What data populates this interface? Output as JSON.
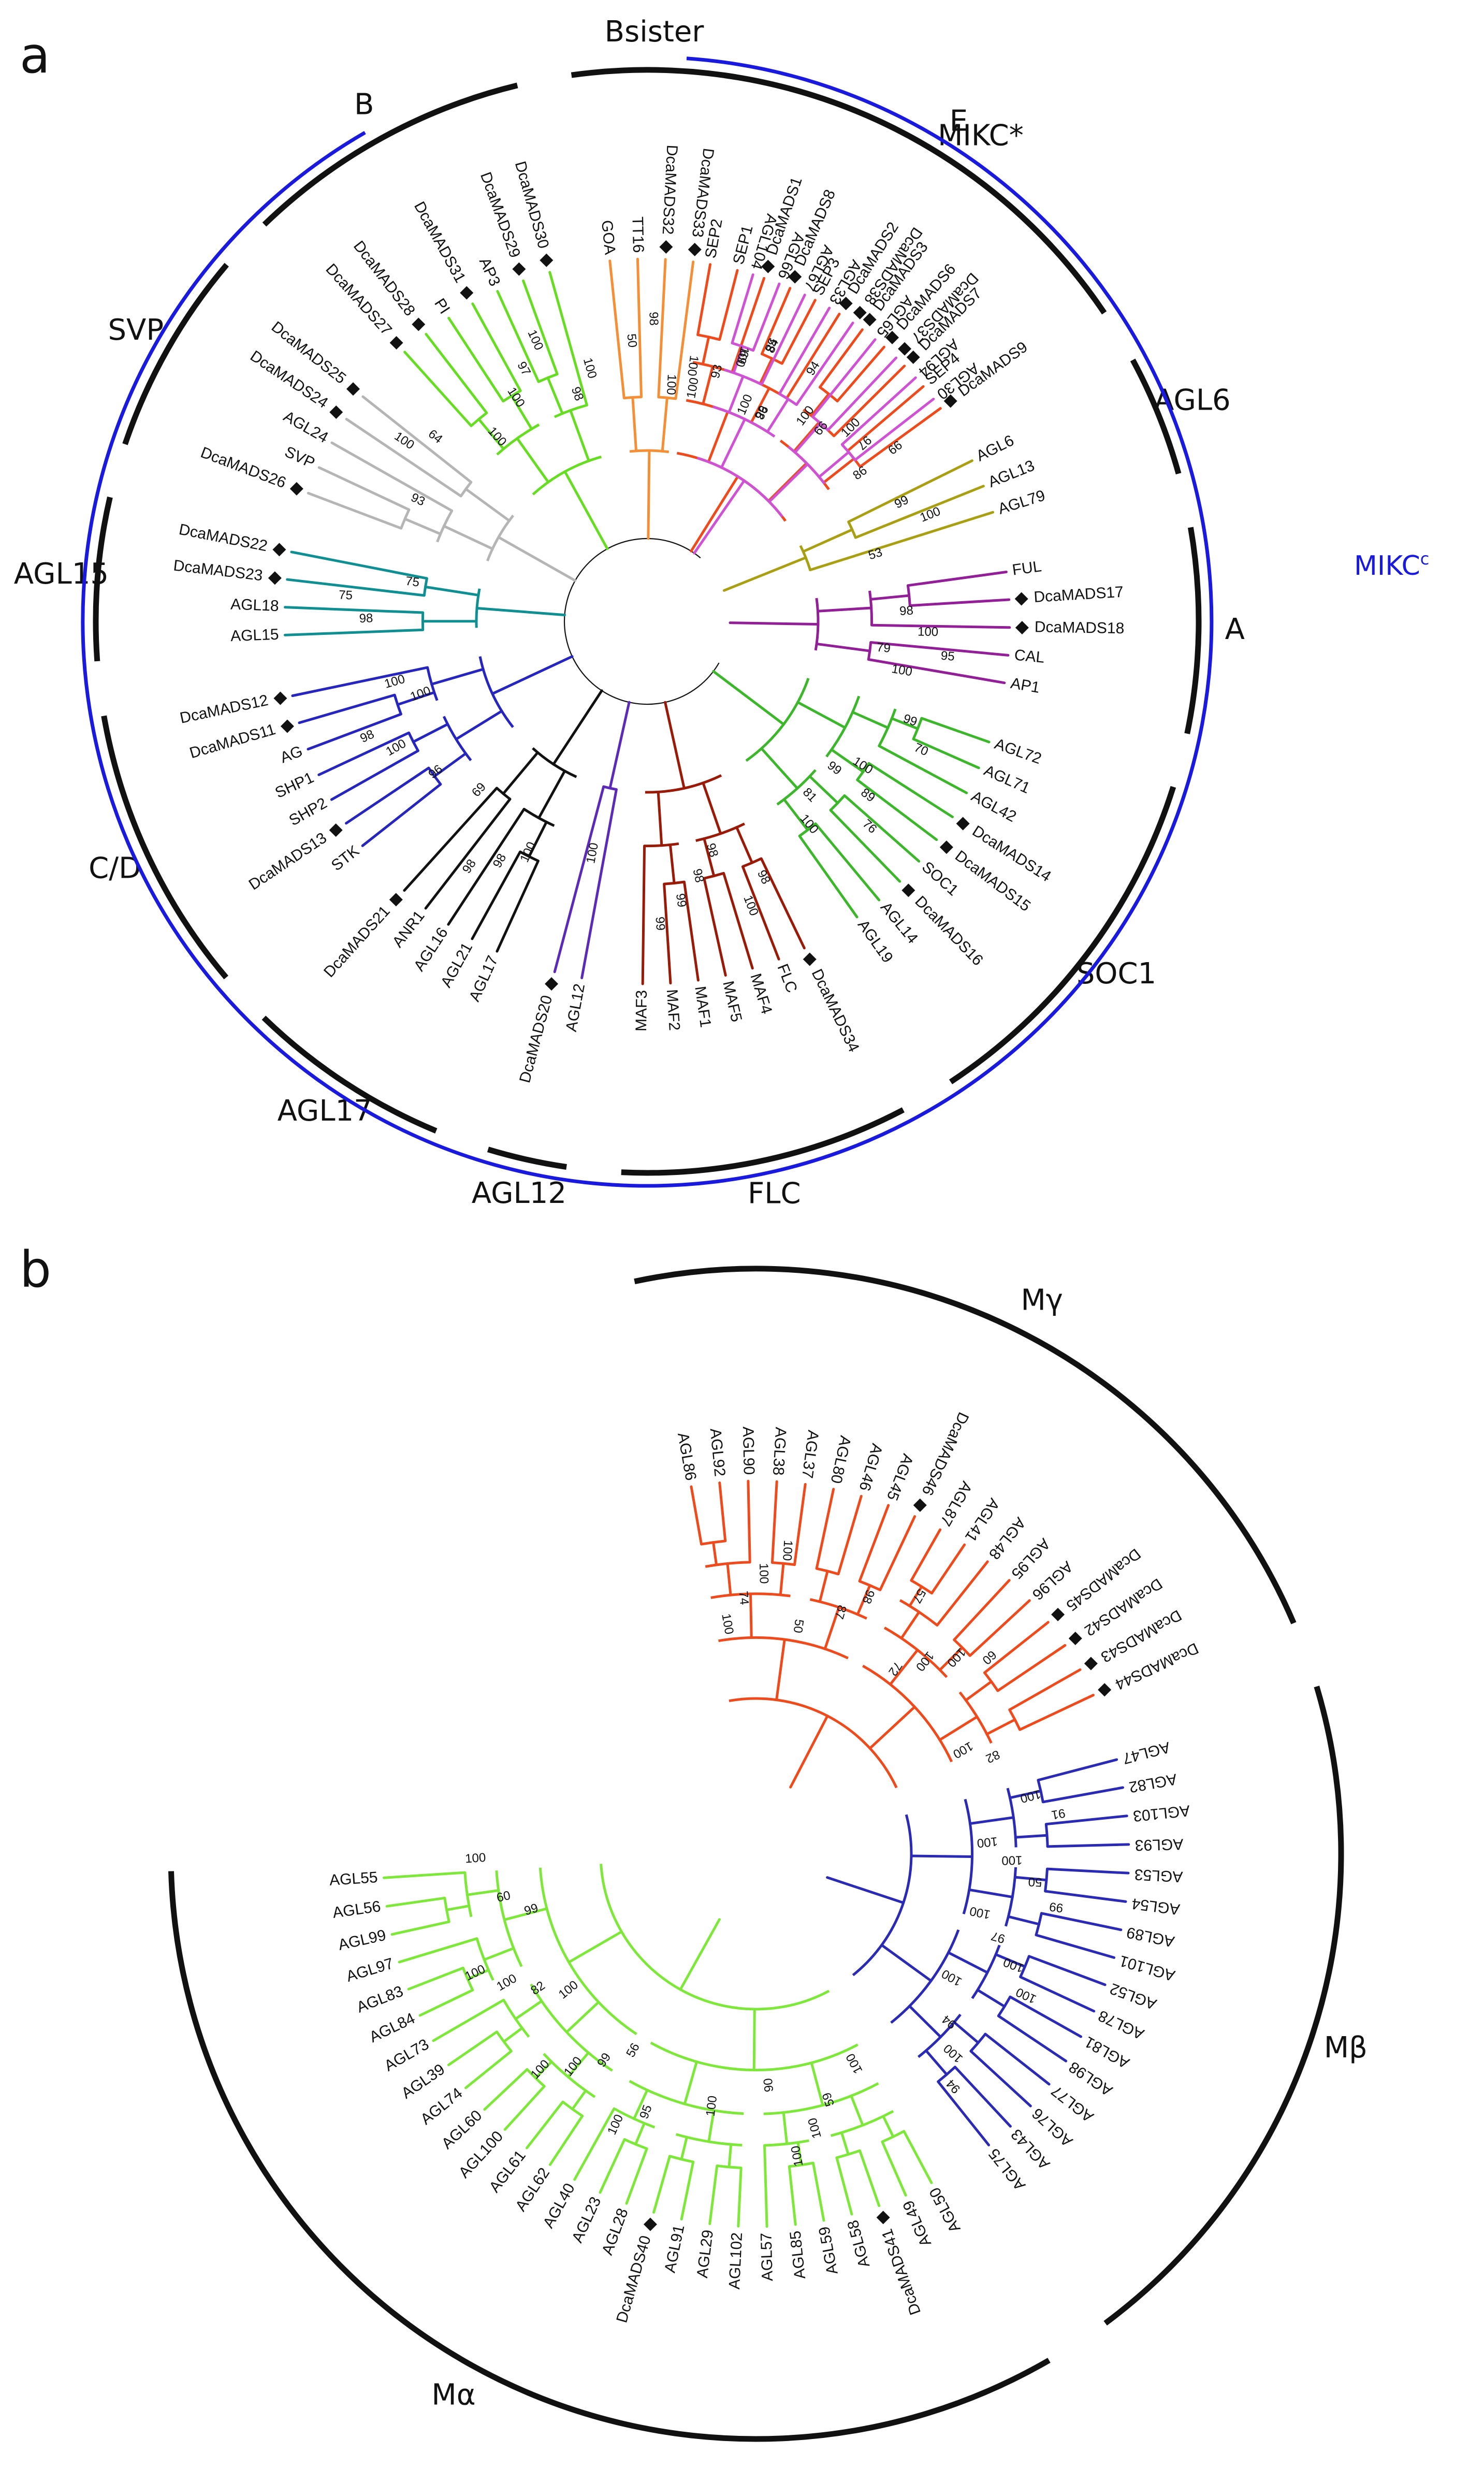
{
  "colors": {
    "ink": "#111111",
    "blue_ring": "#1a1adf",
    "mikcc_label": "#1a1adf",
    "E": "#ee4a1c",
    "AGL6": "#a8a012",
    "A": "#921e98",
    "SOC1": "#3cb62a",
    "FLC": "#9a1a08",
    "AGL12": "#5b2ab6",
    "AGL17": "#111111",
    "CD": "#2626bf",
    "AGL15": "#0f8f92",
    "SVP": "#b5b5b5",
    "B": "#66dd22",
    "Bsister": "#f58f35",
    "MIKCstar": "#cf52d4",
    "Mgamma": "#ee4a1c",
    "Mbeta": "#2a2ab5",
    "Malpha": "#7ee83a"
  },
  "panel_a": {
    "letter": "a",
    "mikcc_label": "MIKC",
    "mikcc_super": "c",
    "clades": [
      {
        "name": "E",
        "members": [
          "SEP2",
          "SEP1",
          "DcaMADS1",
          "DcaMADS8",
          "SEP3",
          "DcaMADS2",
          "DcaMADS3",
          "DcaMADS6",
          "DcaMADS7",
          "SEP4",
          "DcaMADS9"
        ]
      },
      {
        "name": "AGL6",
        "members": [
          "AGL6",
          "AGL13",
          "AGL79"
        ]
      },
      {
        "name": "A",
        "members": [
          "FUL",
          "DcaMADS17",
          "DcaMADS18",
          "CAL",
          "AP1"
        ]
      },
      {
        "name": "SOC1",
        "members": [
          "AGL72",
          "AGL71",
          "AGL42",
          "DcaMADS14",
          "DcaMADS15",
          "SOC1",
          "DcaMADS16",
          "AGL14",
          "AGL19"
        ]
      },
      {
        "name": "FLC",
        "members": [
          "DcaMADS34",
          "FLC",
          "MAF4",
          "MAF5",
          "MAF1",
          "MAF2",
          "MAF3"
        ]
      },
      {
        "name": "AGL12",
        "members": [
          "AGL12",
          "DcaMADS20"
        ]
      },
      {
        "name": "AGL17",
        "members": [
          "AGL17",
          "AGL21",
          "AGL16",
          "ANR1",
          "DcaMADS21"
        ]
      },
      {
        "name": "C/D",
        "members": [
          "STK",
          "DcaMADS13",
          "SHP2",
          "SHP1",
          "AG",
          "DcaMADS11",
          "DcaMADS12"
        ]
      },
      {
        "name": "AGL15",
        "members": [
          "AGL15",
          "AGL18",
          "DcaMADS23",
          "DcaMADS22"
        ]
      },
      {
        "name": "SVP",
        "members": [
          "DcaMADS26",
          "SVP",
          "AGL24",
          "DcaMADS24",
          "DcaMADS25"
        ]
      },
      {
        "name": "B",
        "members": [
          "DcaMADS27",
          "DcaMADS28",
          "PI",
          "DcaMADS31",
          "AP3",
          "DcaMADS29",
          "DcaMADS30"
        ]
      },
      {
        "name": "Bsister",
        "members": [
          "GOA",
          "TT16",
          "DcaMADS32",
          "DcaMADS33"
        ]
      },
      {
        "name": "MIKC*",
        "members": [
          "AGL104",
          "AGL66",
          "AGL67",
          "AGL33",
          "DcaMADS38",
          "AGL65",
          "DcaMADS37",
          "AGL94",
          "AGL30"
        ]
      }
    ],
    "marked": [
      "DcaMADS1",
      "DcaMADS8",
      "DcaMADS2",
      "DcaMADS3",
      "DcaMADS6",
      "DcaMADS7",
      "DcaMADS9",
      "DcaMADS17",
      "DcaMADS18",
      "DcaMADS14",
      "DcaMADS15",
      "DcaMADS16",
      "DcaMADS34",
      "DcaMADS20",
      "DcaMADS21",
      "DcaMADS13",
      "DcaMADS11",
      "DcaMADS12",
      "DcaMADS23",
      "DcaMADS22",
      "DcaMADS26",
      "DcaMADS24",
      "DcaMADS25",
      "DcaMADS27",
      "DcaMADS28",
      "DcaMADS31",
      "DcaMADS29",
      "DcaMADS30",
      "DcaMADS32",
      "DcaMADS33",
      "DcaMADS38",
      "DcaMADS37"
    ],
    "bootstrap": [
      {
        "v": "100",
        "at": "SEP2"
      },
      {
        "v": "93",
        "at": "SEP1"
      },
      {
        "v": "69",
        "at": "DcaMADS1"
      },
      {
        "v": "84",
        "at": "DcaMADS8"
      },
      {
        "v": "99",
        "at": "SEP3"
      },
      {
        "v": "100",
        "at": "DcaMADS3"
      },
      {
        "v": "100",
        "at": "DcaMADS7"
      },
      {
        "v": "94",
        "at": "DcaMADS2"
      },
      {
        "v": "100",
        "at": "DcaMADS8"
      },
      {
        "v": "86",
        "at": "DcaMADS9"
      },
      {
        "v": "99",
        "at": "AGL6"
      },
      {
        "v": "100",
        "at": "AGL13"
      },
      {
        "v": "53",
        "at": "AGL79"
      },
      {
        "v": "98",
        "at": "DcaMADS17"
      },
      {
        "v": "100",
        "at": "DcaMADS18"
      },
      {
        "v": "95",
        "at": "CAL"
      },
      {
        "v": "79",
        "at": "CAL"
      },
      {
        "v": "100",
        "at": "AP1"
      },
      {
        "v": "99",
        "at": "AGL72"
      },
      {
        "v": "70",
        "at": "AGL71"
      },
      {
        "v": "99",
        "at": "DcaMADS15"
      },
      {
        "v": "100",
        "at": "DcaMADS14"
      },
      {
        "v": "89",
        "at": "DcaMADS15"
      },
      {
        "v": "76",
        "at": "SOC1"
      },
      {
        "v": "81",
        "at": "DcaMADS16"
      },
      {
        "v": "100",
        "at": "AGL14"
      },
      {
        "v": "98",
        "at": "DcaMADS34"
      },
      {
        "v": "100",
        "at": "FLC"
      },
      {
        "v": "98",
        "at": "MAF4"
      },
      {
        "v": "98",
        "at": "MAF5"
      },
      {
        "v": "99",
        "at": "MAF1"
      },
      {
        "v": "99",
        "at": "MAF2"
      },
      {
        "v": "100",
        "at": "AGL12"
      },
      {
        "v": "100",
        "at": "AGL17"
      },
      {
        "v": "98",
        "at": "AGL21"
      },
      {
        "v": "98",
        "at": "AGL16"
      },
      {
        "v": "69",
        "at": "DcaMADS21"
      },
      {
        "v": "96",
        "at": "STK"
      },
      {
        "v": "100",
        "at": "SHP2"
      },
      {
        "v": "98",
        "at": "SHP1"
      },
      {
        "v": "100",
        "at": "AG"
      },
      {
        "v": "100",
        "at": "DcaMADS11"
      },
      {
        "v": "98",
        "at": "AGL15"
      },
      {
        "v": "75",
        "at": "AGL18"
      },
      {
        "v": "75",
        "at": "DcaMADS23"
      },
      {
        "v": "93",
        "at": "SVP"
      },
      {
        "v": "64",
        "at": "DcaMADS25"
      },
      {
        "v": "100",
        "at": "DcaMADS24"
      },
      {
        "v": "100",
        "at": "DcaMADS27"
      },
      {
        "v": "100",
        "at": "PI"
      },
      {
        "v": "97",
        "at": "DcaMADS31"
      },
      {
        "v": "100",
        "at": "AP3"
      },
      {
        "v": "98",
        "at": "DcaMADS29"
      },
      {
        "v": "100",
        "at": "DcaMADS30"
      },
      {
        "v": "50",
        "at": "GOA"
      },
      {
        "v": "98",
        "at": "TT16"
      },
      {
        "v": "100",
        "at": "DcaMADS32"
      },
      {
        "v": "100",
        "at": "DcaMADS33"
      },
      {
        "v": "100",
        "at": "AGL104"
      },
      {
        "v": "58",
        "at": "AGL66"
      },
      {
        "v": "98",
        "at": "AGL67"
      },
      {
        "v": "99",
        "at": "AGL65"
      },
      {
        "v": "97",
        "at": "AGL94"
      },
      {
        "v": "99",
        "at": "AGL30"
      }
    ]
  },
  "panel_b": {
    "letter": "b",
    "clades": [
      {
        "name": "Mγ",
        "members": [
          "AGL86",
          "AGL92",
          "AGL90",
          "AGL38",
          "AGL37",
          "AGL80",
          "AGL46",
          "AGL45",
          "DcaMADS46",
          "AGL87",
          "AGL41",
          "AGL48",
          "AGL95",
          "AGL96",
          "DcaMADS45",
          "DcaMADS42",
          "DcaMADS43",
          "DcaMADS44"
        ]
      },
      {
        "name": "Mβ",
        "members": [
          "AGL47",
          "AGL82",
          "AGL103",
          "AGL93",
          "AGL53",
          "AGL54",
          "AGL89",
          "AGL101",
          "AGL52",
          "AGL78",
          "AGL81",
          "AGL98",
          "AGL77",
          "AGL76",
          "AGL43",
          "AGL75"
        ]
      },
      {
        "name": "Mα",
        "members": [
          "AGL50",
          "AGL49",
          "DcaMADS41",
          "AGL58",
          "AGL59",
          "AGL85",
          "AGL57",
          "AGL102",
          "AGL29",
          "AGL91",
          "DcaMADS40",
          "AGL28",
          "AGL23",
          "AGL40",
          "AGL62",
          "AGL61",
          "AGL100",
          "AGL60",
          "AGL74",
          "AGL39",
          "AGL73",
          "AGL84",
          "AGL83",
          "AGL97",
          "AGL99",
          "AGL56",
          "AGL55"
        ]
      }
    ],
    "marked": [
      "DcaMADS46",
      "DcaMADS45",
      "DcaMADS42",
      "DcaMADS43",
      "DcaMADS44",
      "DcaMADS41",
      "DcaMADS40"
    ],
    "bootstrap": [
      {
        "v": "100",
        "at": "AGL86"
      },
      {
        "v": "74",
        "at": "AGL92"
      },
      {
        "v": "100",
        "at": "AGL90"
      },
      {
        "v": "100",
        "at": "AGL38"
      },
      {
        "v": "50",
        "at": "AGL37"
      },
      {
        "v": "87",
        "at": "AGL46"
      },
      {
        "v": "98",
        "at": "AGL45"
      },
      {
        "v": "57",
        "at": "AGL87"
      },
      {
        "v": "72",
        "at": "AGL41"
      },
      {
        "v": "100",
        "at": "AGL48"
      },
      {
        "v": "100",
        "at": "AGL95"
      },
      {
        "v": "60",
        "at": "AGL96"
      },
      {
        "v": "100",
        "at": "DcaMADS43"
      },
      {
        "v": "82",
        "at": "DcaMADS44"
      },
      {
        "v": "100",
        "at": "AGL47"
      },
      {
        "v": "91",
        "at": "AGL82"
      },
      {
        "v": "100",
        "at": "AGL103"
      },
      {
        "v": "100",
        "at": "AGL93"
      },
      {
        "v": "50",
        "at": "AGL53"
      },
      {
        "v": "99",
        "at": "AGL54"
      },
      {
        "v": "100",
        "at": "AGL89"
      },
      {
        "v": "97",
        "at": "AGL101"
      },
      {
        "v": "100",
        "at": "AGL52"
      },
      {
        "v": "100",
        "at": "AGL78"
      },
      {
        "v": "100",
        "at": "AGL81"
      },
      {
        "v": "94",
        "at": "AGL77"
      },
      {
        "v": "100",
        "at": "AGL76"
      },
      {
        "v": "94",
        "at": "AGL43"
      },
      {
        "v": "100",
        "at": "AGL50"
      },
      {
        "v": "59",
        "at": "DcaMADS41"
      },
      {
        "v": "100",
        "at": "AGL58"
      },
      {
        "v": "100",
        "at": "AGL59"
      },
      {
        "v": "90",
        "at": "AGL85"
      },
      {
        "v": "100",
        "at": "AGL29"
      },
      {
        "v": "95",
        "at": "AGL28"
      },
      {
        "v": "100",
        "at": "AGL23"
      },
      {
        "v": "56",
        "at": "AGL40"
      },
      {
        "v": "99",
        "at": "AGL62"
      },
      {
        "v": "100",
        "at": "AGL61"
      },
      {
        "v": "100",
        "at": "AGL100"
      },
      {
        "v": "100",
        "at": "AGL74"
      },
      {
        "v": "82",
        "at": "AGL39"
      },
      {
        "v": "100",
        "at": "AGL73"
      },
      {
        "v": "100",
        "at": "AGL84"
      },
      {
        "v": "99",
        "at": "AGL97"
      },
      {
        "v": "60",
        "at": "AGL99"
      },
      {
        "v": "100",
        "at": "AGL55"
      }
    ]
  }
}
